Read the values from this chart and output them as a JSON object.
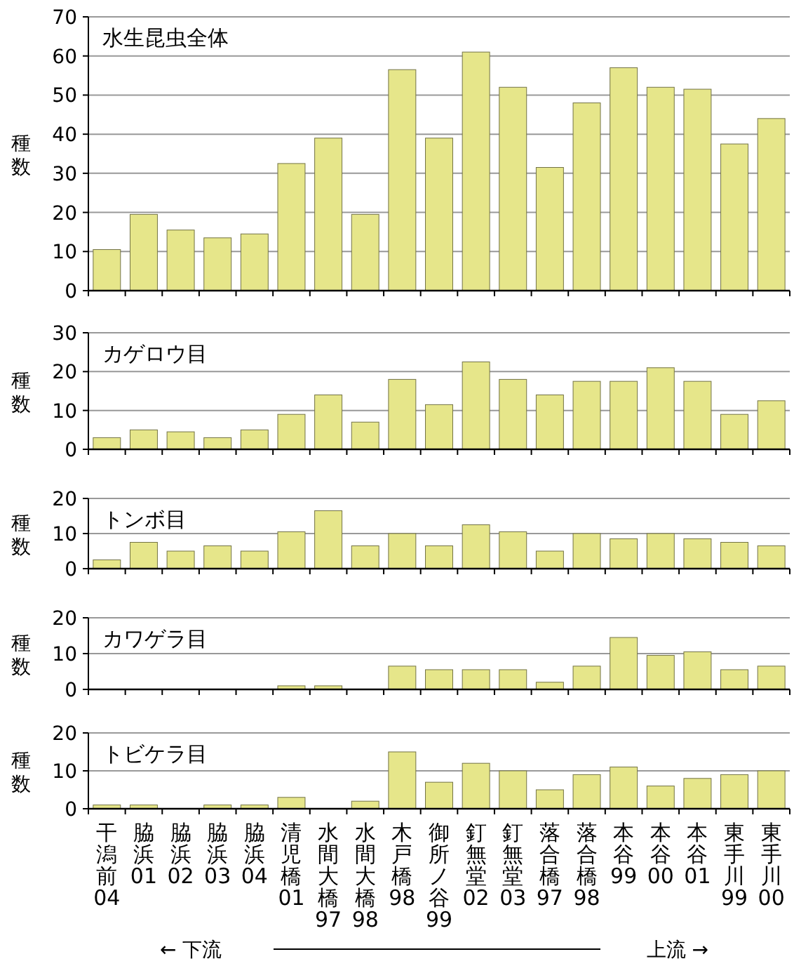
{
  "chart_data": [
    {
      "type": "bar",
      "title": "水生昆虫全体",
      "ylabel": "種数",
      "categories": [
        "干潟前04",
        "脇浜01",
        "脇浜02",
        "脇浜03",
        "脇浜04",
        "清児橋01",
        "水間大橋97",
        "水間大橋98",
        "木戸橋98",
        "御所ノ谷99",
        "釘無堂02",
        "釘無堂03",
        "落合橋97",
        "落合橋98",
        "本谷99",
        "本谷00",
        "本谷01",
        "東手川99",
        "東手川00"
      ],
      "color": "#e6e68a",
      "values": [
        10.5,
        19.5,
        15.5,
        13.5,
        14.5,
        32.5,
        39,
        19.5,
        56.5,
        39,
        61,
        52,
        31.5,
        48,
        57,
        52,
        51.5,
        37.5,
        44
      ],
      "ylim": [
        0,
        70
      ],
      "yticks": [
        0,
        10,
        20,
        30,
        40,
        50,
        60,
        70
      ],
      "grid": "y",
      "tick_labels": "y"
    },
    {
      "type": "bar",
      "title": "カゲロウ目",
      "ylabel": "種数",
      "categories": [
        "干潟前04",
        "脇浜01",
        "脇浜02",
        "脇浜03",
        "脇浜04",
        "清児橋01",
        "水間大橋97",
        "水間大橋98",
        "木戸橋98",
        "御所ノ谷99",
        "釘無堂02",
        "釘無堂03",
        "落合橋97",
        "落合橋98",
        "本谷99",
        "本谷00",
        "本谷01",
        "東手川99",
        "東手川00"
      ],
      "color": "#e6e68a",
      "values": [
        3,
        5,
        4.5,
        3,
        5,
        9,
        14,
        7,
        18,
        11.5,
        22.5,
        18,
        14,
        17.5,
        17.5,
        21,
        17.5,
        9,
        12.5
      ],
      "ylim": [
        0,
        30
      ],
      "yticks": [
        0,
        10,
        20,
        30
      ],
      "grid": "y",
      "tick_labels": "y"
    },
    {
      "type": "bar",
      "title": "トンボ目",
      "ylabel": "種数",
      "categories": [
        "干潟前04",
        "脇浜01",
        "脇浜02",
        "脇浜03",
        "脇浜04",
        "清児橋01",
        "水間大橋97",
        "水間大橋98",
        "木戸橋98",
        "御所ノ谷99",
        "釘無堂02",
        "釘無堂03",
        "落合橋97",
        "落合橋98",
        "本谷99",
        "本谷00",
        "本谷01",
        "東手川99",
        "東手川00"
      ],
      "color": "#e6e68a",
      "values": [
        2.5,
        7.5,
        5,
        6.5,
        5,
        10.5,
        16.5,
        6.5,
        10,
        6.5,
        12.5,
        10.5,
        5,
        10,
        8.5,
        10,
        8.5,
        7.5,
        6.5
      ],
      "ylim": [
        0,
        20
      ],
      "yticks": [
        0,
        10,
        20
      ],
      "grid": "y",
      "tick_labels": "y"
    },
    {
      "type": "bar",
      "title": "カワゲラ目",
      "ylabel": "種数",
      "categories": [
        "干潟前04",
        "脇浜01",
        "脇浜02",
        "脇浜03",
        "脇浜04",
        "清児橋01",
        "水間大橋97",
        "水間大橋98",
        "木戸橋98",
        "御所ノ谷99",
        "釘無堂02",
        "釘無堂03",
        "落合橋97",
        "落合橋98",
        "本谷99",
        "本谷00",
        "本谷01",
        "東手川99",
        "東手川00"
      ],
      "color": "#e6e68a",
      "values": [
        0,
        0,
        0,
        0,
        0,
        1,
        1,
        0,
        6.5,
        5.5,
        5.5,
        5.5,
        2,
        6.5,
        14.5,
        9.5,
        10.5,
        5.5,
        6.5
      ],
      "ylim": [
        0,
        20
      ],
      "yticks": [
        0,
        10,
        20
      ],
      "grid": "y",
      "tick_labels": "y"
    },
    {
      "type": "bar",
      "title": "トビケラ目",
      "ylabel": "種数",
      "categories": [
        "干潟前04",
        "脇浜01",
        "脇浜02",
        "脇浜03",
        "脇浜04",
        "清児橋01",
        "水間大橋97",
        "水間大橋98",
        "木戸橋98",
        "御所ノ谷99",
        "釘無堂02",
        "釘無堂03",
        "落合橋97",
        "落合橋98",
        "本谷99",
        "本谷00",
        "本谷01",
        "東手川99",
        "東手川00"
      ],
      "color": "#e6e68a",
      "values": [
        1,
        1,
        0,
        1,
        1,
        3,
        0,
        2,
        15,
        7,
        12,
        10,
        5,
        9,
        11,
        6,
        8,
        9,
        10
      ],
      "ylim": [
        0,
        20
      ],
      "yticks": [
        0,
        10,
        20
      ],
      "grid": "y",
      "annotations": [
        "← 下流",
        "上流 →"
      ]
    }
  ]
}
